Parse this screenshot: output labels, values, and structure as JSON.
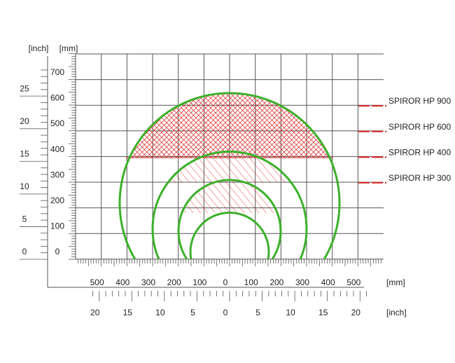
{
  "left_units": {
    "inch": "[inch]",
    "mm": "[mm]"
  },
  "left_mm_ticks": [
    "700",
    "600",
    "500",
    "400",
    "300",
    "200",
    "100",
    "0"
  ],
  "left_inch_ticks": [
    "25",
    "20",
    "15",
    "10",
    "5",
    "0"
  ],
  "bottom_mm_ticks": [
    "500",
    "400",
    "300",
    "200",
    "100",
    "0",
    "100",
    "200",
    "300",
    "400",
    "500"
  ],
  "bottom_mm_unit": "[mm]",
  "bottom_inch_ticks": [
    "20",
    "15",
    "10",
    "5",
    "0",
    "5",
    "10",
    "15",
    "20"
  ],
  "bottom_inch_unit": "[inch]",
  "legend": [
    "SPIROR HP 900",
    "SPIROR HP 600",
    "SPIROR HP 400",
    "SPIROR HP 300"
  ]
}
